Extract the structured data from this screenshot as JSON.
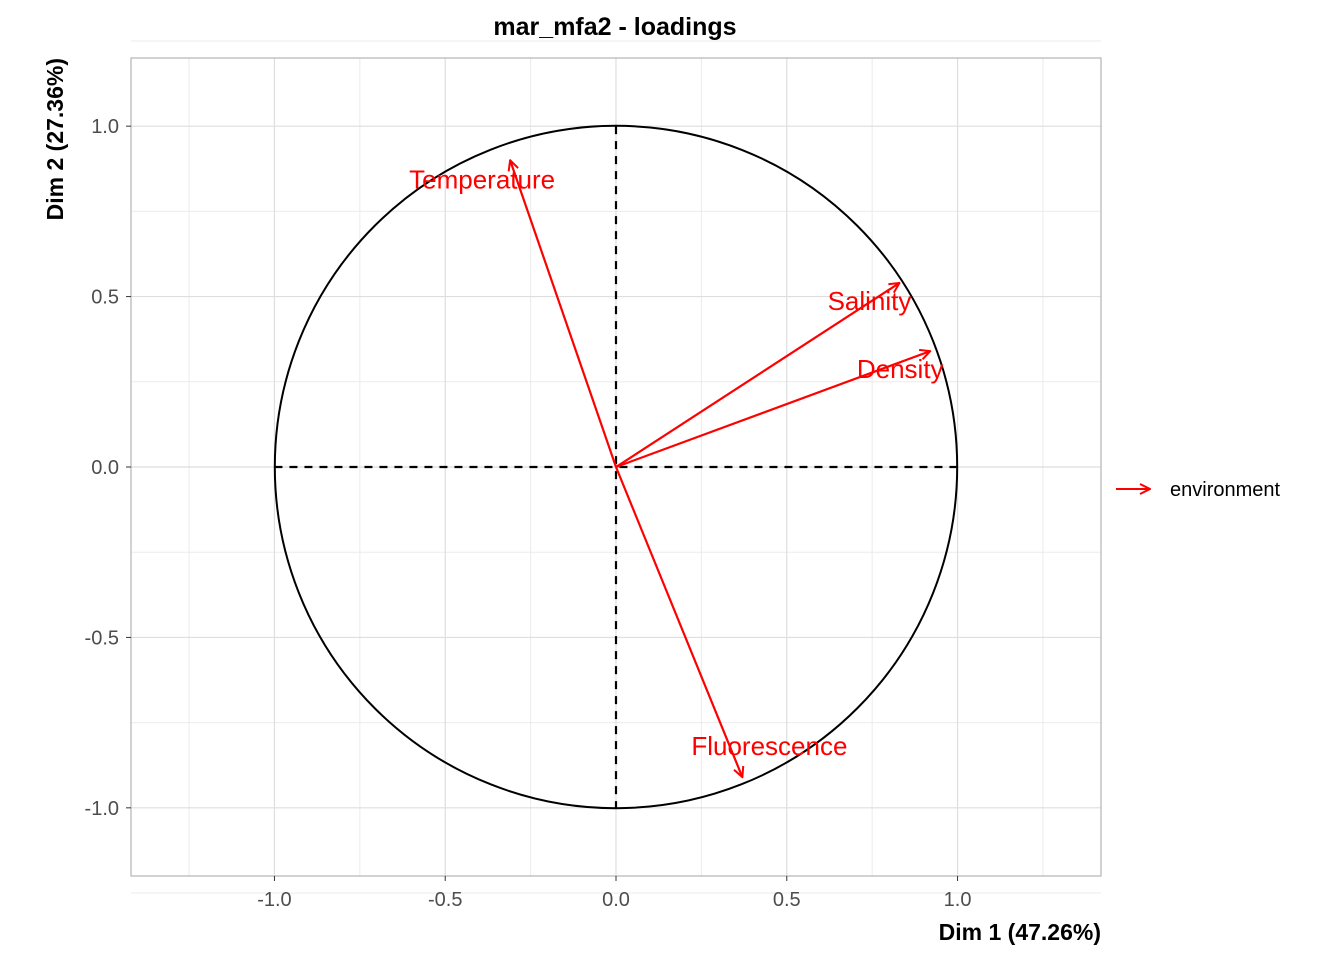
{
  "chart_data": {
    "type": "scatter",
    "subtype": "correlation-circle",
    "title": "mar_mfa2 - loadings",
    "xlabel": "Dim 1 (47.26%)",
    "ylabel": "Dim 2 (27.36%)",
    "xlim": [
      -1.42,
      1.42
    ],
    "ylim": [
      -1.2,
      1.2
    ],
    "x_ticks": [
      -1.0,
      -0.5,
      0.0,
      0.5,
      1.0
    ],
    "x_tick_labels": [
      "-1.0",
      "-0.5",
      "0.0",
      "0.5",
      "1.0"
    ],
    "y_ticks": [
      -1.0,
      -0.5,
      0.0,
      0.5,
      1.0
    ],
    "y_tick_labels": [
      "-1.0",
      "-0.5",
      "0.0",
      "0.5",
      "1.0"
    ],
    "grid": true,
    "unit_circle": true,
    "color": "#ff0000",
    "series": [
      {
        "name": "environment",
        "color": "#ff0000",
        "vectors": [
          {
            "label": "Temperature",
            "x": -0.31,
            "y": 0.9
          },
          {
            "label": "Salinity",
            "x": 0.83,
            "y": 0.54
          },
          {
            "label": "Density",
            "x": 0.92,
            "y": 0.34
          },
          {
            "label": "Fluorescence",
            "x": 0.37,
            "y": -0.91
          }
        ]
      }
    ],
    "legend": {
      "position": "right",
      "entries": [
        "environment"
      ]
    }
  }
}
